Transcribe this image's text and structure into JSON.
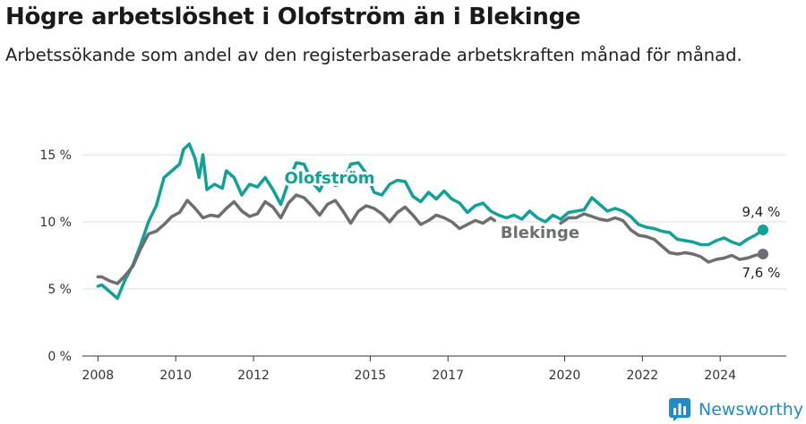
{
  "title": "Högre arbetslöshet i Olofström än i Blekinge",
  "subtitle": "Arbetssökande som andel av den registerbaserade arbetskraften månad för månad.",
  "brand": {
    "name": "Newsworthy",
    "color": "#1f8cc9"
  },
  "chart_data": {
    "type": "line",
    "ylim": [
      0,
      16
    ],
    "xlim": [
      2007.6,
      2025.7
    ],
    "y_ticks": [
      0,
      5,
      10,
      15
    ],
    "y_tick_labels": [
      "0 %",
      "5 %",
      "10 %",
      "15 %"
    ],
    "x_ticks": [
      2008,
      2010,
      2012,
      2015,
      2017,
      2020,
      2022,
      2024
    ],
    "x_tick_labels": [
      "2008",
      "2010",
      "2012",
      "2015",
      "2017",
      "2020",
      "2022",
      "2024"
    ],
    "grid": true,
    "series": [
      {
        "name": "Olofström",
        "color": "#13a096",
        "end_label": "9,4 %",
        "points": [
          [
            2008.0,
            5.2
          ],
          [
            2008.1,
            5.3
          ],
          [
            2008.3,
            4.8
          ],
          [
            2008.5,
            4.3
          ],
          [
            2008.7,
            5.7
          ],
          [
            2008.9,
            6.8
          ],
          [
            2009.1,
            8.3
          ],
          [
            2009.3,
            10.0
          ],
          [
            2009.5,
            11.2
          ],
          [
            2009.7,
            13.3
          ],
          [
            2009.9,
            13.8
          ],
          [
            2010.1,
            14.3
          ],
          [
            2010.2,
            15.4
          ],
          [
            2010.35,
            15.8
          ],
          [
            2010.5,
            14.7
          ],
          [
            2010.6,
            13.3
          ],
          [
            2010.7,
            15.0
          ],
          [
            2010.8,
            12.4
          ],
          [
            2011.0,
            12.8
          ],
          [
            2011.2,
            12.5
          ],
          [
            2011.3,
            13.8
          ],
          [
            2011.5,
            13.3
          ],
          [
            2011.7,
            12.0
          ],
          [
            2011.9,
            12.8
          ],
          [
            2012.1,
            12.6
          ],
          [
            2012.3,
            13.3
          ],
          [
            2012.5,
            12.4
          ],
          [
            2012.7,
            11.3
          ],
          [
            2012.9,
            13.0
          ],
          [
            2013.1,
            14.4
          ],
          [
            2013.3,
            14.3
          ],
          [
            2013.5,
            13.0
          ],
          [
            2013.7,
            12.3
          ],
          [
            2013.9,
            13.5
          ],
          [
            2014.1,
            12.7
          ],
          [
            2014.3,
            12.9
          ],
          [
            2014.5,
            14.3
          ],
          [
            2014.7,
            14.4
          ],
          [
            2014.9,
            13.6
          ],
          [
            2015.1,
            12.2
          ],
          [
            2015.3,
            12.0
          ],
          [
            2015.5,
            12.8
          ],
          [
            2015.7,
            13.1
          ],
          [
            2015.9,
            13.0
          ],
          [
            2016.1,
            11.9
          ],
          [
            2016.3,
            11.5
          ],
          [
            2016.5,
            12.2
          ],
          [
            2016.7,
            11.7
          ],
          [
            2016.9,
            12.3
          ],
          [
            2017.1,
            11.7
          ],
          [
            2017.3,
            11.4
          ],
          [
            2017.5,
            10.7
          ],
          [
            2017.7,
            11.2
          ],
          [
            2017.9,
            11.4
          ],
          [
            2018.1,
            10.8
          ],
          [
            2018.3,
            10.5
          ],
          [
            2018.5,
            10.3
          ],
          [
            2018.7,
            10.5
          ],
          [
            2018.9,
            10.2
          ],
          [
            2019.1,
            10.8
          ],
          [
            2019.3,
            10.3
          ],
          [
            2019.5,
            10.0
          ],
          [
            2019.7,
            10.5
          ],
          [
            2019.9,
            10.2
          ],
          [
            2020.1,
            10.7
          ],
          [
            2020.3,
            10.8
          ],
          [
            2020.5,
            10.9
          ],
          [
            2020.7,
            11.8
          ],
          [
            2020.9,
            11.3
          ],
          [
            2021.1,
            10.8
          ],
          [
            2021.3,
            11.0
          ],
          [
            2021.5,
            10.8
          ],
          [
            2021.7,
            10.4
          ],
          [
            2021.9,
            9.8
          ],
          [
            2022.1,
            9.6
          ],
          [
            2022.3,
            9.5
          ],
          [
            2022.5,
            9.3
          ],
          [
            2022.7,
            9.2
          ],
          [
            2022.9,
            8.7
          ],
          [
            2023.1,
            8.6
          ],
          [
            2023.3,
            8.5
          ],
          [
            2023.5,
            8.3
          ],
          [
            2023.7,
            8.3
          ],
          [
            2023.9,
            8.6
          ],
          [
            2024.1,
            8.8
          ],
          [
            2024.3,
            8.5
          ],
          [
            2024.5,
            8.3
          ],
          [
            2024.7,
            8.7
          ],
          [
            2024.9,
            9.0
          ],
          [
            2025.1,
            9.4
          ]
        ]
      },
      {
        "name": "Blekinge",
        "color": "#6d6e71",
        "end_label": "7,6 %",
        "points": [
          [
            2008.0,
            5.9
          ],
          [
            2008.1,
            5.9
          ],
          [
            2008.3,
            5.6
          ],
          [
            2008.5,
            5.4
          ],
          [
            2008.7,
            6.0
          ],
          [
            2008.9,
            6.7
          ],
          [
            2009.1,
            8.0
          ],
          [
            2009.3,
            9.1
          ],
          [
            2009.5,
            9.3
          ],
          [
            2009.7,
            9.8
          ],
          [
            2009.9,
            10.4
          ],
          [
            2010.1,
            10.7
          ],
          [
            2010.3,
            11.6
          ],
          [
            2010.5,
            11.0
          ],
          [
            2010.7,
            10.3
          ],
          [
            2010.9,
            10.5
          ],
          [
            2011.1,
            10.4
          ],
          [
            2011.3,
            11.0
          ],
          [
            2011.5,
            11.5
          ],
          [
            2011.7,
            10.8
          ],
          [
            2011.9,
            10.4
          ],
          [
            2012.1,
            10.6
          ],
          [
            2012.3,
            11.5
          ],
          [
            2012.5,
            11.1
          ],
          [
            2012.7,
            10.3
          ],
          [
            2012.9,
            11.4
          ],
          [
            2013.1,
            12.0
          ],
          [
            2013.3,
            11.8
          ],
          [
            2013.5,
            11.2
          ],
          [
            2013.7,
            10.5
          ],
          [
            2013.9,
            11.3
          ],
          [
            2014.1,
            11.6
          ],
          [
            2014.3,
            10.8
          ],
          [
            2014.5,
            9.9
          ],
          [
            2014.7,
            10.8
          ],
          [
            2014.9,
            11.2
          ],
          [
            2015.1,
            11.0
          ],
          [
            2015.3,
            10.6
          ],
          [
            2015.5,
            10.0
          ],
          [
            2015.7,
            10.7
          ],
          [
            2015.9,
            11.1
          ],
          [
            2016.1,
            10.5
          ],
          [
            2016.3,
            9.8
          ],
          [
            2016.5,
            10.1
          ],
          [
            2016.7,
            10.5
          ],
          [
            2016.9,
            10.3
          ],
          [
            2017.1,
            10.0
          ],
          [
            2017.3,
            9.5
          ],
          [
            2017.5,
            9.8
          ],
          [
            2017.7,
            10.1
          ],
          [
            2017.9,
            9.9
          ],
          [
            2018.1,
            10.3
          ],
          [
            2018.2,
            10.1
          ]
        ]
      },
      {
        "name": "",
        "color": "#6d6e71",
        "end_label": "",
        "points": [
          [
            2019.9,
            9.9
          ],
          [
            2020.1,
            10.3
          ],
          [
            2020.3,
            10.3
          ],
          [
            2020.5,
            10.6
          ],
          [
            2020.7,
            10.4
          ],
          [
            2020.9,
            10.2
          ],
          [
            2021.1,
            10.1
          ],
          [
            2021.3,
            10.3
          ],
          [
            2021.5,
            10.1
          ],
          [
            2021.7,
            9.4
          ],
          [
            2021.9,
            9.0
          ],
          [
            2022.1,
            8.9
          ],
          [
            2022.3,
            8.7
          ],
          [
            2022.5,
            8.2
          ],
          [
            2022.7,
            7.7
          ],
          [
            2022.9,
            7.6
          ],
          [
            2023.1,
            7.7
          ],
          [
            2023.3,
            7.6
          ],
          [
            2023.5,
            7.4
          ],
          [
            2023.7,
            7.0
          ],
          [
            2023.9,
            7.2
          ],
          [
            2024.1,
            7.3
          ],
          [
            2024.3,
            7.5
          ],
          [
            2024.5,
            7.2
          ],
          [
            2024.7,
            7.3
          ],
          [
            2024.9,
            7.5
          ],
          [
            2025.1,
            7.6
          ]
        ]
      }
    ],
    "annotations": [
      {
        "text": "Olofström",
        "series": "Olofström"
      },
      {
        "text": "Blekinge",
        "series": "Blekinge"
      }
    ]
  }
}
